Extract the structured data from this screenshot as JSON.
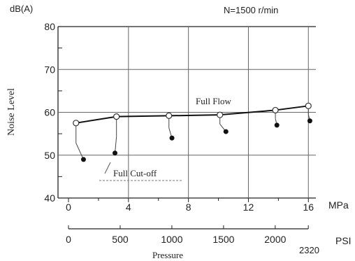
{
  "chart_data": {
    "type": "line",
    "unit_label": "dB(A)",
    "ylabel": "Noise Level",
    "xlabel": "Pressure",
    "speed_note": "N=1500 r/min",
    "ylim": [
      40,
      80
    ],
    "y_ticks": [
      "40",
      "50",
      "60",
      "70",
      "80"
    ],
    "xlim_mpa": [
      -0.7,
      16.5
    ],
    "x_ticks_mpa": [
      "0",
      "4",
      "8",
      "12",
      "16"
    ],
    "x_unit_mpa": "MPa",
    "x_ticks_psi": [
      "0",
      "500",
      "1000",
      "1500",
      "2000"
    ],
    "x_end_psi": "2320",
    "x_unit_psi": "PSI",
    "grid": true,
    "series": [
      {
        "name": "Full Flow",
        "x": [
          0.5,
          3.2,
          6.7,
          10.1,
          13.8,
          16.0
        ],
        "y": [
          57.5,
          59.0,
          59.2,
          59.4,
          60.5,
          61.5
        ]
      },
      {
        "name": "Full Cut-off",
        "x": [
          1.0,
          3.1,
          6.9,
          10.5,
          13.9,
          16.1
        ],
        "y": [
          49.0,
          50.5,
          54.0,
          55.5,
          57.0,
          58.0
        ]
      }
    ]
  }
}
